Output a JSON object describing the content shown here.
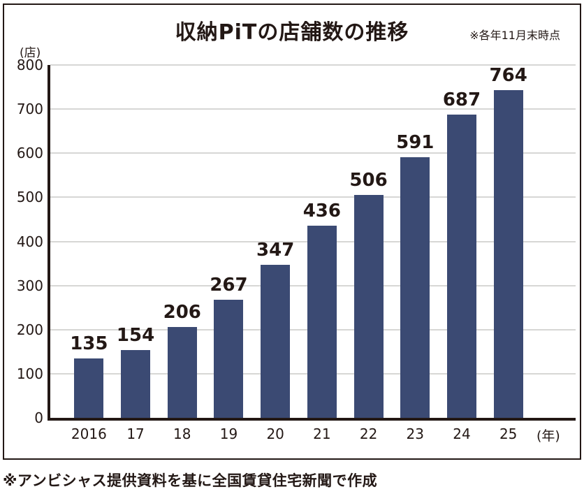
{
  "panel": {
    "title": "収納PiTの店舗数の推移",
    "note": "※各年11月末時点",
    "y_unit": "(店)",
    "x_unit": "(年)"
  },
  "footer": "※アンビシャス提供資料を基に全国賃貸住宅新聞で作成",
  "colors": {
    "bar": "#3b4a73",
    "text": "#231815",
    "grid": "#d7d7d5"
  },
  "chart_data": {
    "type": "bar",
    "title": "収納PiTの店舗数の推移",
    "subtitle": "※各年11月末時点",
    "categories": [
      "2016",
      "17",
      "18",
      "19",
      "20",
      "21",
      "22",
      "23",
      "24",
      "25"
    ],
    "values": [
      135,
      154,
      206,
      267,
      347,
      436,
      506,
      591,
      687,
      764
    ],
    "xlabel": "(年)",
    "ylabel": "(店)",
    "ylim": [
      0,
      800
    ],
    "ytick_interval": 100,
    "grid": true,
    "legend": false,
    "source_note": "※アンビシャス提供資料を基に全国賃貸住宅新聞で作成"
  }
}
